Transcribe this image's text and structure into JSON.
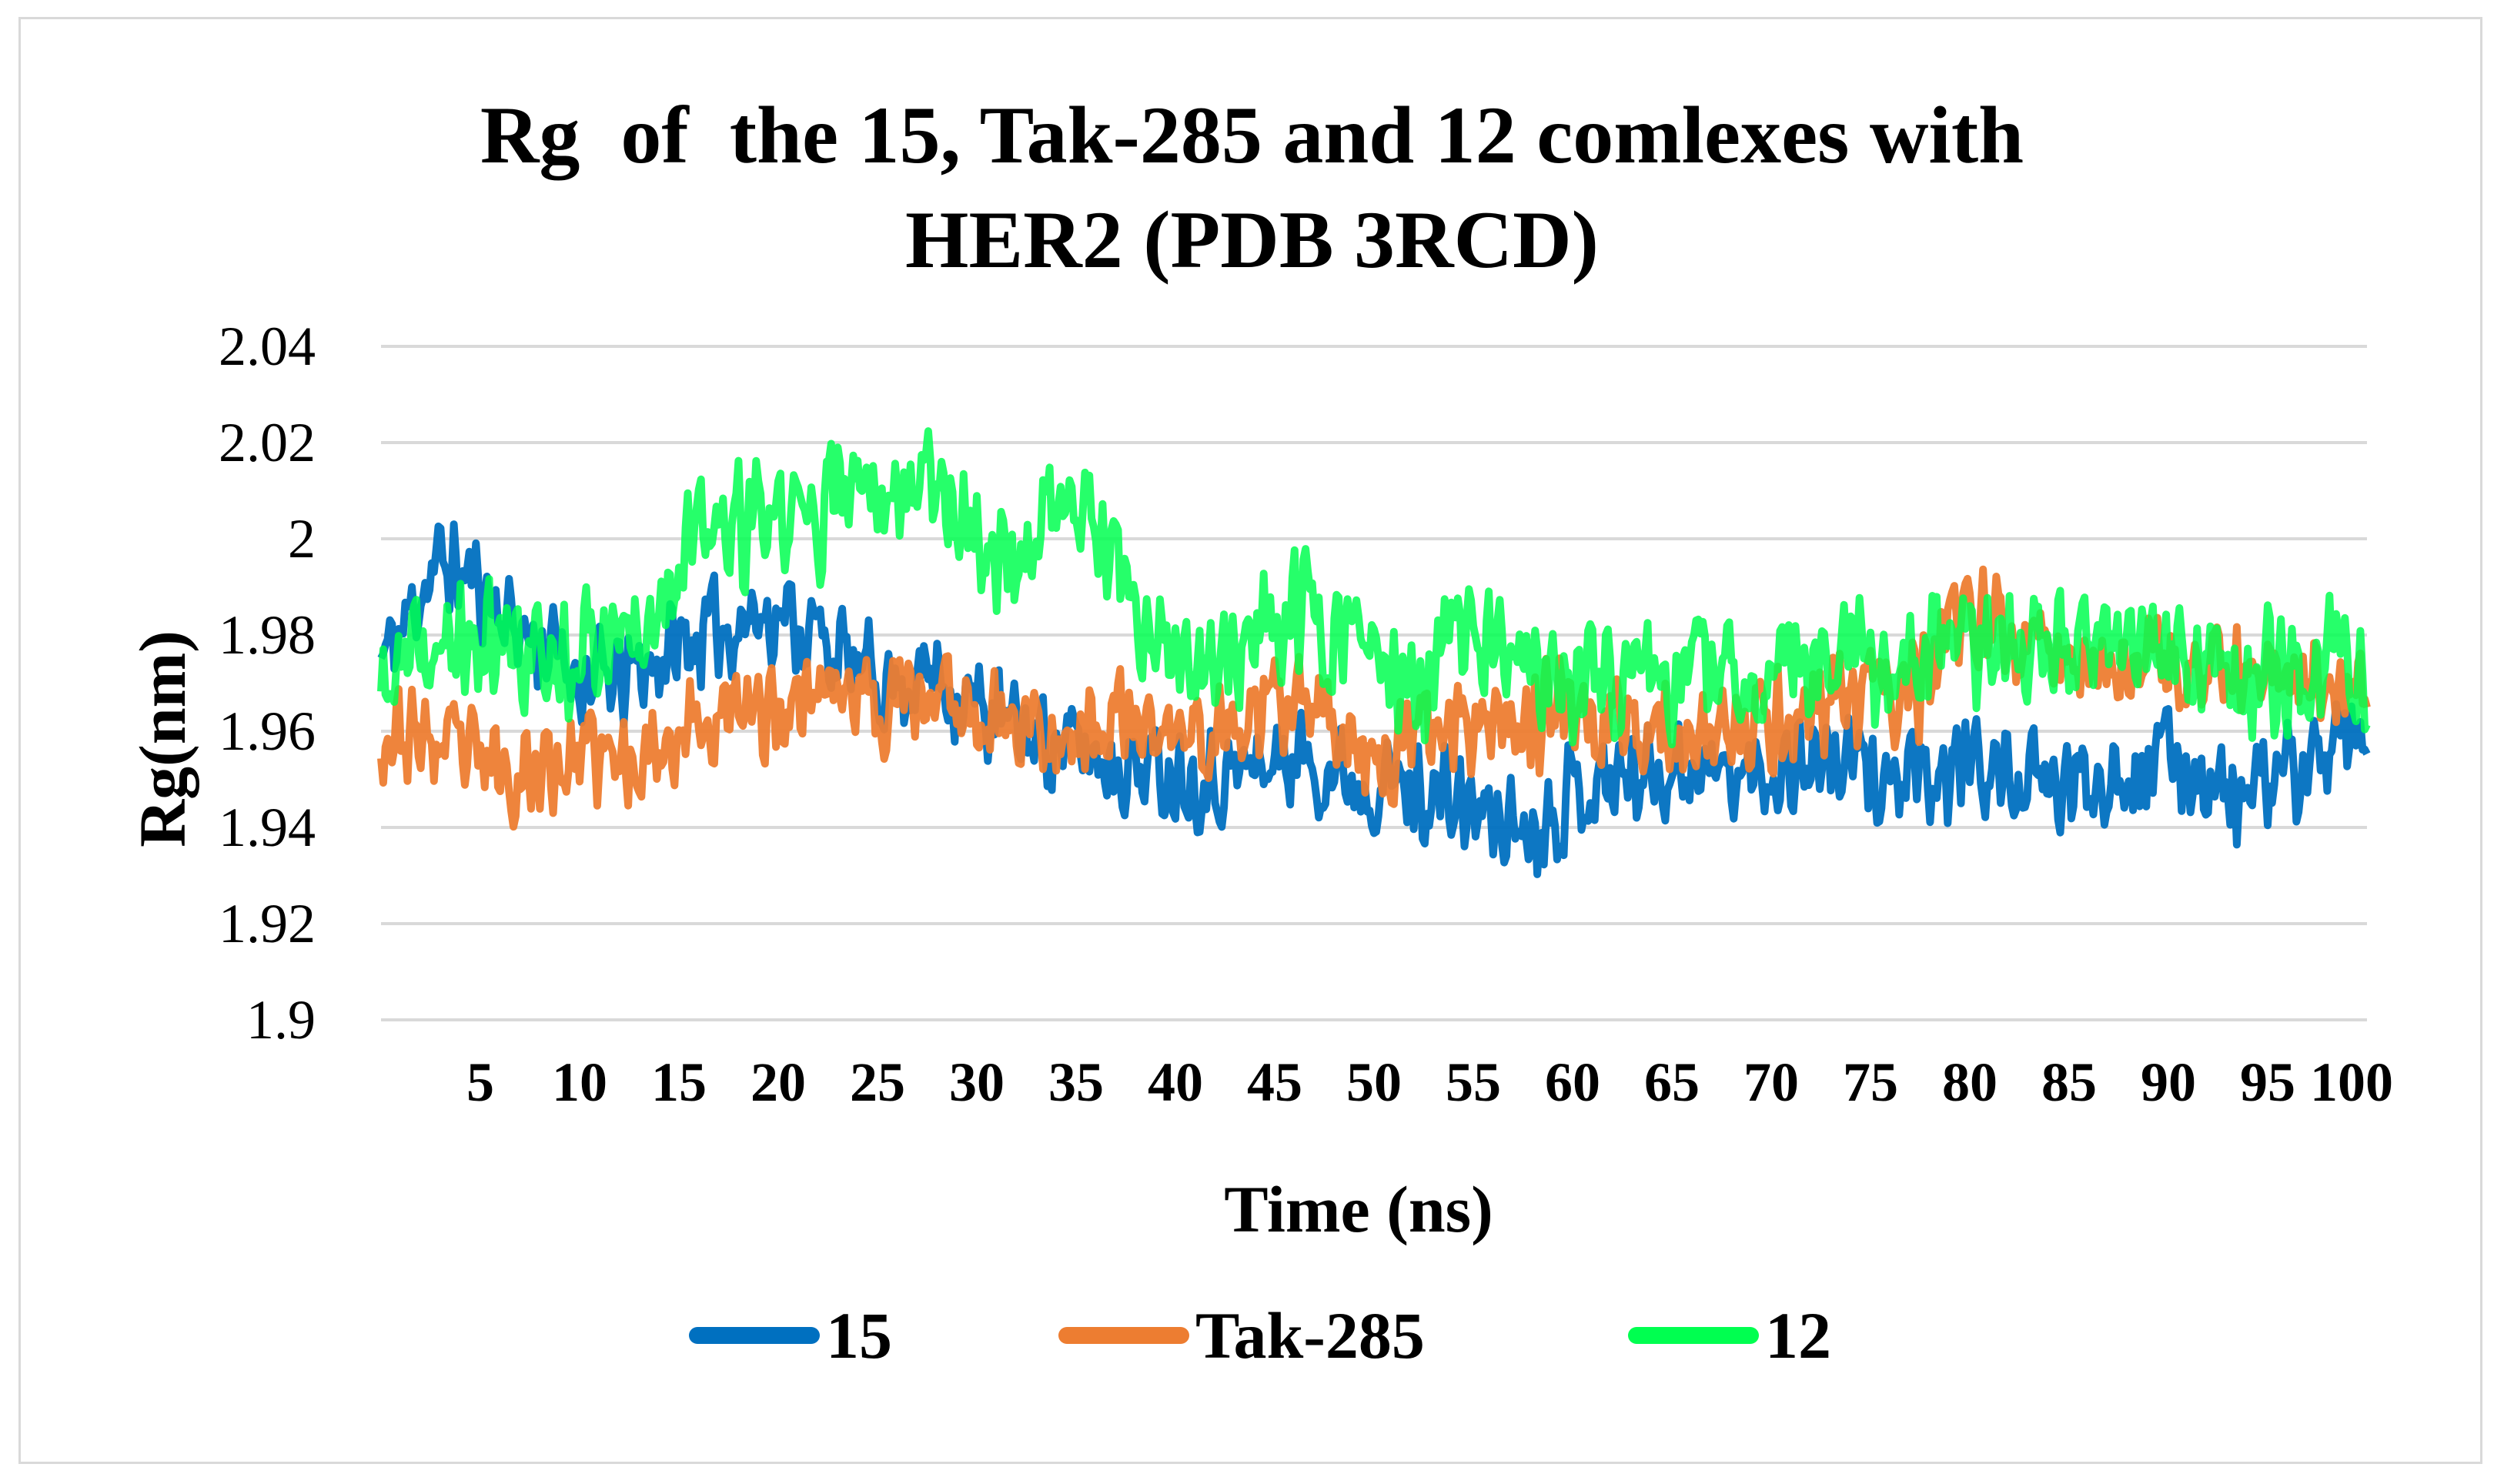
{
  "title_lines": [
    "Rg  of  the 15, Tak-285 and 12 comlexes with",
    "HER2 (PDB 3RCD)"
  ],
  "chart_data": {
    "type": "line",
    "title": "Rg  of  the 15, Tak-285 and 12 comlexes with HER2 (PDB 3RCD)",
    "xlabel": "Time (ns)",
    "ylabel": "Rg(nm)",
    "ylim": [
      1.9,
      2.04
    ],
    "yticks": [
      "1.9",
      "1.92",
      "1.94",
      "1.96",
      "1.98",
      "2",
      "2.02",
      "2.04"
    ],
    "xlim": [
      0,
      100
    ],
    "xticks": [
      "5",
      "10",
      "15",
      "20",
      "25",
      "30",
      "35",
      "40",
      "45",
      "50",
      "55",
      "60",
      "65",
      "70",
      "75",
      "80",
      "85",
      "90",
      "95",
      "100"
    ],
    "grid": true,
    "legend_position": "bottom",
    "series": [
      {
        "name": "15",
        "color": "#0070C0",
        "noise": 0.009,
        "x": [
          0,
          1,
          2,
          3,
          4,
          5,
          6,
          8,
          10,
          12,
          15,
          18,
          20,
          22,
          24,
          26,
          28,
          30,
          32,
          34,
          36,
          38,
          40,
          42,
          44,
          46,
          48,
          50,
          52,
          54,
          56,
          58,
          60,
          62,
          64,
          66,
          68,
          70,
          72,
          74,
          76,
          78,
          80,
          82,
          84,
          86,
          88,
          90,
          92,
          94,
          96,
          98,
          100
        ],
        "y": [
          1.975,
          1.98,
          1.99,
          1.995,
          1.993,
          1.99,
          1.985,
          1.978,
          1.972,
          1.97,
          1.978,
          1.983,
          1.985,
          1.98,
          1.972,
          1.97,
          1.972,
          1.965,
          1.96,
          1.958,
          1.955,
          1.953,
          1.952,
          1.95,
          1.953,
          1.955,
          1.952,
          1.95,
          1.948,
          1.945,
          1.942,
          1.94,
          1.948,
          1.95,
          1.952,
          1.953,
          1.95,
          1.952,
          1.955,
          1.953,
          1.95,
          1.948,
          1.955,
          1.95,
          1.948,
          1.95,
          1.953,
          1.955,
          1.95,
          1.945,
          1.952,
          1.955,
          1.955
        ]
      },
      {
        "name": "Tak-285",
        "color": "#ED7D31",
        "noise": 0.009,
        "x": [
          0,
          2,
          4,
          6,
          8,
          10,
          12,
          14,
          16,
          18,
          20,
          22,
          24,
          26,
          28,
          30,
          32,
          34,
          36,
          38,
          40,
          42,
          44,
          46,
          48,
          50,
          52,
          54,
          56,
          58,
          60,
          62,
          64,
          66,
          68,
          70,
          72,
          74,
          76,
          78,
          80,
          82,
          84,
          86,
          88,
          90,
          92,
          94,
          96,
          98,
          100
        ],
        "y": [
          1.96,
          1.958,
          1.955,
          1.952,
          1.952,
          1.955,
          1.953,
          1.958,
          1.962,
          1.963,
          1.965,
          1.97,
          1.968,
          1.965,
          1.968,
          1.965,
          1.962,
          1.96,
          1.96,
          1.962,
          1.958,
          1.96,
          1.962,
          1.965,
          1.962,
          1.955,
          1.958,
          1.962,
          1.965,
          1.962,
          1.965,
          1.963,
          1.96,
          1.96,
          1.958,
          1.962,
          1.965,
          1.967,
          1.968,
          1.97,
          1.985,
          1.98,
          1.978,
          1.975,
          1.972,
          1.972,
          1.97,
          1.972,
          1.975,
          1.97,
          1.968
        ]
      },
      {
        "name": "12",
        "color": "#00FF50",
        "noise": 0.011,
        "x": [
          0,
          2,
          4,
          6,
          8,
          10,
          12,
          14,
          16,
          18,
          20,
          22,
          24,
          26,
          28,
          30,
          32,
          34,
          36,
          38,
          40,
          42,
          44,
          46,
          48,
          50,
          52,
          54,
          56,
          58,
          60,
          62,
          64,
          66,
          68,
          70,
          72,
          74,
          76,
          78,
          80,
          82,
          84,
          86,
          88,
          90,
          92,
          94,
          96,
          98,
          100
        ],
        "y": [
          1.968,
          1.975,
          1.978,
          1.978,
          1.975,
          1.978,
          1.98,
          1.99,
          2.0,
          2.002,
          2.003,
          2.005,
          2.01,
          2.012,
          2.015,
          2.0,
          1.995,
          2.008,
          2.002,
          1.98,
          1.972,
          1.975,
          1.978,
          1.985,
          1.982,
          1.975,
          1.965,
          1.98,
          1.978,
          1.97,
          1.972,
          1.972,
          1.97,
          1.972,
          1.97,
          1.972,
          1.978,
          1.975,
          1.972,
          1.975,
          1.98,
          1.978,
          1.978,
          1.98,
          1.978,
          1.975,
          1.975,
          1.972,
          1.972,
          1.975,
          1.972
        ]
      }
    ]
  }
}
